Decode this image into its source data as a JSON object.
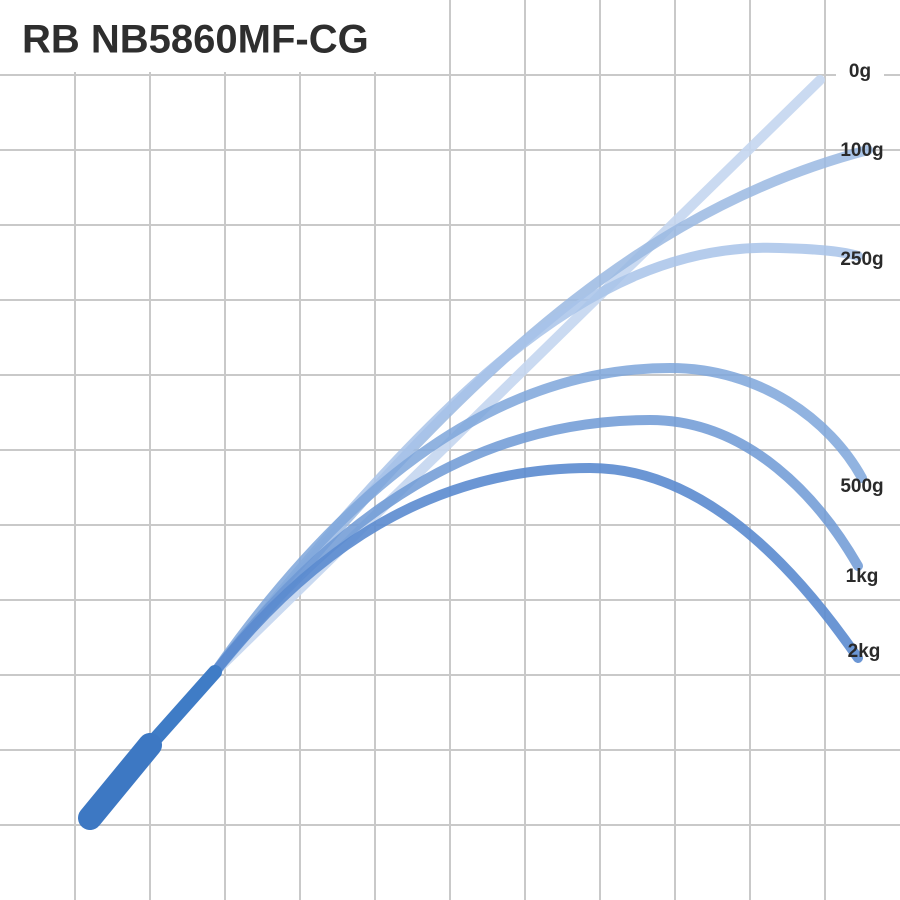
{
  "title": "RB NB5860MF-CG",
  "curves": [
    {
      "label": "0g"
    },
    {
      "label": "100g"
    },
    {
      "label": "250g"
    },
    {
      "label": "500g"
    },
    {
      "label": "1kg"
    },
    {
      "label": "2kg"
    }
  ]
}
